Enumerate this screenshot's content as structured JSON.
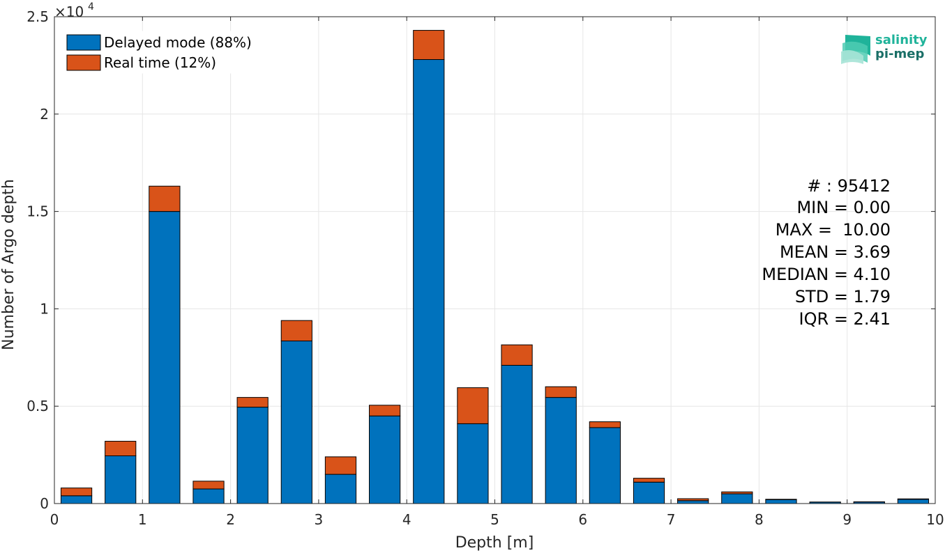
{
  "chart_data": {
    "type": "bar",
    "stacked": true,
    "xlabel": "Depth [m]",
    "ylabel": "Number of Argo depth",
    "y_exponent_label": "×10",
    "y_exponent_power": "4",
    "xlim": [
      0,
      10
    ],
    "ylim": [
      0,
      25000
    ],
    "x_ticks": [
      0,
      1,
      2,
      3,
      4,
      5,
      6,
      7,
      8,
      9,
      10
    ],
    "y_ticks": [
      0,
      5000,
      10000,
      15000,
      20000,
      25000
    ],
    "y_tick_labels": [
      "0",
      "0.5",
      "1",
      "1.5",
      "2",
      "2.5"
    ],
    "grid": true,
    "legend_position": "top-left",
    "bin_centers": [
      0.25,
      0.75,
      1.25,
      1.75,
      2.25,
      2.75,
      3.25,
      3.75,
      4.25,
      4.75,
      5.25,
      5.75,
      6.25,
      6.75,
      7.25,
      7.75,
      8.25,
      8.75,
      9.25,
      9.75
    ],
    "bin_width": 0.35,
    "series": [
      {
        "name": "Delayed mode (88%)",
        "color": "#0072BD",
        "values": [
          400,
          2450,
          15000,
          750,
          4950,
          8350,
          1500,
          4500,
          22800,
          4100,
          7100,
          5450,
          3900,
          1100,
          150,
          500,
          200,
          70,
          80,
          220
        ]
      },
      {
        "name": "Real time (12%)",
        "color": "#D95319",
        "values": [
          400,
          750,
          1300,
          400,
          500,
          1050,
          900,
          550,
          1500,
          1850,
          1050,
          550,
          300,
          200,
          100,
          100,
          20,
          10,
          10,
          20
        ]
      }
    ]
  },
  "stats": {
    "lines": [
      "# : 95412",
      "MIN = 0.00",
      "MAX =  10.00",
      "MEAN = 3.69",
      "MEDIAN = 4.10",
      "STD = 1.79",
      "IQR = 2.41"
    ]
  },
  "logo": {
    "line1": "salinity",
    "line2": "pi-mep",
    "color1": "#1fb39a",
    "color2": "#1a6f67"
  }
}
